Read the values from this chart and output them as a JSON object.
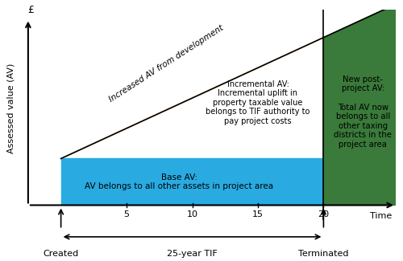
{
  "xlabel": "Time",
  "ylabel": "Assessed value (AV)",
  "ylabel2": "£",
  "xlim": [
    0,
    28
  ],
  "ylim": [
    0,
    10
  ],
  "base_av_y": 2.5,
  "tif_start_x": 2.5,
  "tif_end_x": 22.5,
  "post_end_x": 28,
  "peak_y": 9.0,
  "xticks": [
    5,
    10,
    15,
    20
  ],
  "color_blue": "#29ABE2",
  "color_orange": "#F7941D",
  "color_green": "#3A7A3A",
  "text_diagonal": "Increased AV from development",
  "text_incremental": "Incremental AV:\nIncremental uplift in\nproperty taxable value\nbelongs to TIF authority to\npay project costs",
  "text_base": "Base AV:\nAV belongs to all other assets in project area",
  "text_new_post": "New post-\nproject AV:\n\nTotal AV now\nbelongs to all\nother taxing\ndistricts in the\nproject area",
  "text_created": "Created",
  "text_terminated": "Terminated",
  "text_tif": "25-year TIF",
  "font_size": 8,
  "font_size_small": 7.5
}
